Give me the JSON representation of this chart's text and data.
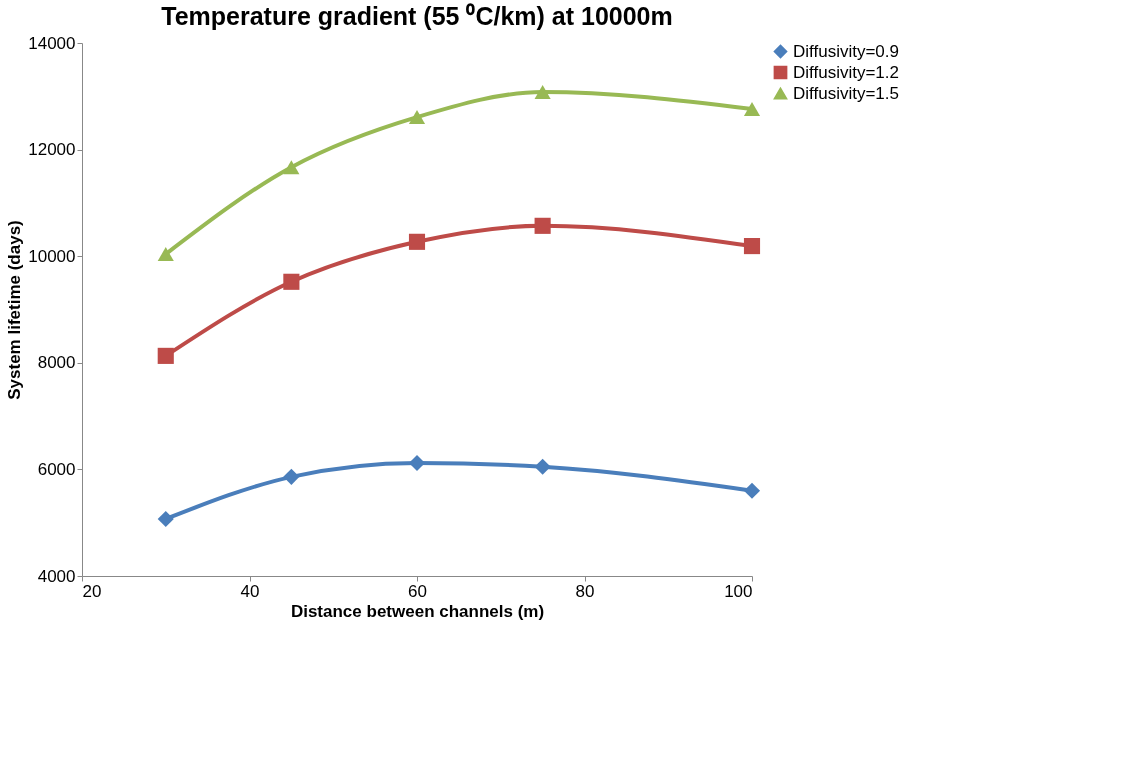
{
  "chart_data": {
    "type": "line",
    "title": "Temperature gradient (55 ⁰C/km) at 10000m",
    "xlabel": "Distance between channels (m)",
    "ylabel": "System lifetime (days)",
    "x": [
      30,
      45,
      60,
      75,
      100
    ],
    "series": [
      {
        "name": "Diffusivity=0.9",
        "color": "#4a7ebb",
        "marker": "diamond",
        "values": [
          5070,
          5860,
          6120,
          6050,
          5600
        ]
      },
      {
        "name": "Diffusivity=1.2",
        "color": "#be4b48",
        "marker": "square",
        "values": [
          8130,
          9520,
          10270,
          10570,
          10190
        ]
      },
      {
        "name": "Diffusivity=1.5",
        "color": "#98b954",
        "marker": "triangle",
        "values": [
          10040,
          11670,
          12610,
          13080,
          12760
        ]
      }
    ],
    "xlim": [
      20,
      100
    ],
    "xticks": [
      20,
      40,
      60,
      80,
      100
    ],
    "ylim": [
      4000,
      14000
    ],
    "yticks": [
      4000,
      6000,
      8000,
      10000,
      12000,
      14000
    ],
    "grid": false,
    "legend": "right",
    "line_style": "solid"
  }
}
